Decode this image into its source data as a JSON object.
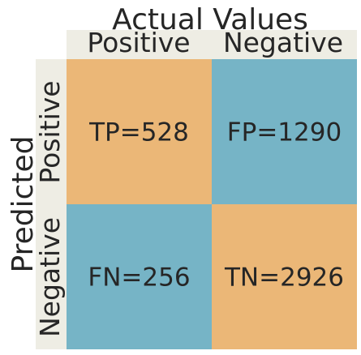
{
  "chart_data": {
    "type": "heatmap",
    "title": "Actual Values",
    "xlabel": "Actual Values",
    "ylabel": "Predicted",
    "x_categories": [
      "Positive",
      "Negative"
    ],
    "y_categories": [
      "Positive",
      "Negative"
    ],
    "cells": [
      {
        "row": 0,
        "col": 0,
        "label": "TP=528",
        "value": 528,
        "color": "#ebb777"
      },
      {
        "row": 0,
        "col": 1,
        "label": "FP=1290",
        "value": 1290,
        "color": "#76b4c6"
      },
      {
        "row": 1,
        "col": 0,
        "label": "FN=256",
        "value": 256,
        "color": "#76b4c6"
      },
      {
        "row": 1,
        "col": 1,
        "label": "TN=2926",
        "value": 2926,
        "color": "#ebb777"
      }
    ],
    "colors": {
      "axis_band": "#eeede4",
      "text": "#262626"
    }
  }
}
